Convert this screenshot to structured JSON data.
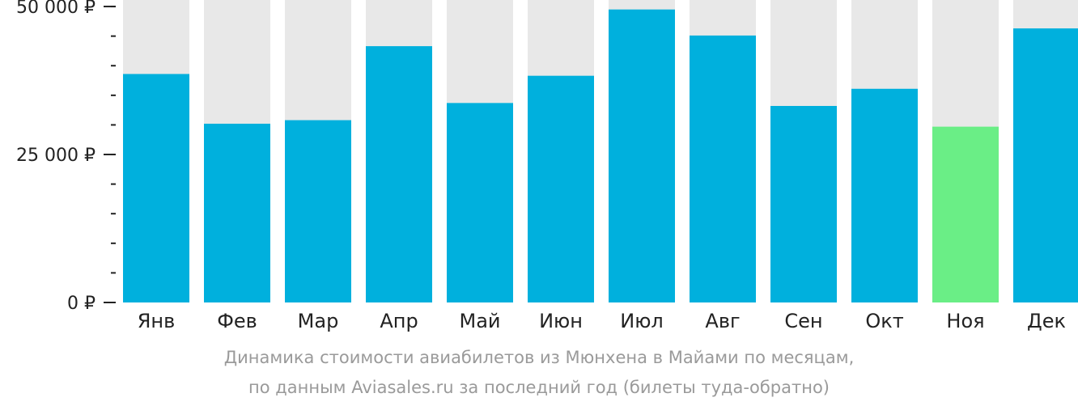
{
  "chart_data": {
    "type": "bar",
    "categories": [
      "Янв",
      "Фев",
      "Мар",
      "Апр",
      "Май",
      "Июн",
      "Июл",
      "Авг",
      "Сен",
      "Окт",
      "Ноя",
      "Дек"
    ],
    "values": [
      38600,
      30200,
      30800,
      43300,
      33700,
      38300,
      49500,
      45100,
      33200,
      36100,
      29700,
      46300
    ],
    "ylim": [
      0,
      51100
    ],
    "y_major_ticks": [
      {
        "value": 0,
        "label": "0 ₽"
      },
      {
        "value": 25000,
        "label": "25 000 ₽"
      },
      {
        "value": 50000,
        "label": "50 000 ₽"
      }
    ],
    "y_minor_step": 5000,
    "highlight_index": 10,
    "colors": {
      "bar": "#00b0dd",
      "highlight": "#6aee86",
      "background_bar": "#e8e8e8",
      "axis": "#222222"
    },
    "caption": [
      "Динамика стоимости авиабилетов из Мюнхена в Майами по месяцам,",
      "по данным Aviasales.ru за последний год (билеты туда-обратно)"
    ]
  }
}
